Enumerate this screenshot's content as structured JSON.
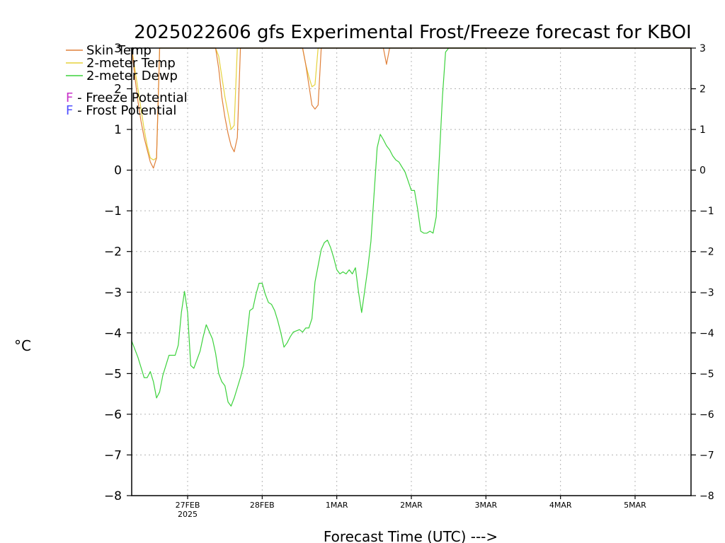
{
  "chart_data": {
    "type": "line",
    "title": "2025022606 gfs Experimental Frost/Freeze forecast for KBOI",
    "ylabel": "°C",
    "xlabel": "Forecast Time (UTC) --->",
    "ylim": [
      -8,
      3
    ],
    "xlim_hours": [
      6,
      186
    ],
    "yticks": [
      -8,
      -7,
      -6,
      -5,
      -4,
      -3,
      -2,
      -1,
      0,
      1,
      2,
      3
    ],
    "ytick_labels": [
      "−8",
      "−7",
      "−6",
      "−5",
      "−4",
      "−3",
      "−2",
      "−1",
      "0",
      "1",
      "2",
      "3"
    ],
    "xticks": [
      {
        "label": "27FEB",
        "sub": "2025",
        "hour": 24
      },
      {
        "label": "28FEB",
        "sub": "",
        "hour": 48
      },
      {
        "label": "1MAR",
        "sub": "",
        "hour": 72
      },
      {
        "label": "2MAR",
        "sub": "",
        "hour": 96
      },
      {
        "label": "3MAR",
        "sub": "",
        "hour": 120
      },
      {
        "label": "4MAR",
        "sub": "",
        "hour": 144
      },
      {
        "label": "5MAR",
        "sub": "",
        "hour": 168
      }
    ],
    "grid": true,
    "legend": [
      {
        "text": "Skin Temp",
        "color": "#e0803a"
      },
      {
        "text": "2-meter Temp",
        "color": "#e6d23c"
      },
      {
        "text": "2-meter Dewp",
        "color": "#3cd23c"
      }
    ],
    "notes": [
      {
        "letter": "F",
        "text": " - Freeze Potential",
        "color": "#c832c8"
      },
      {
        "letter": "F",
        "text": " - Frost Potential",
        "color": "#5050ff"
      }
    ],
    "series": [
      {
        "name": "2-meter Dewp",
        "color": "#3cd23c",
        "hours": [
          6,
          8,
          10,
          11,
          12,
          13,
          14,
          15,
          16,
          18,
          20,
          21,
          22,
          23,
          24,
          25,
          26,
          28,
          29,
          30,
          32,
          33,
          34,
          35,
          36,
          37,
          38,
          39,
          40,
          41,
          42,
          44,
          45,
          46,
          47,
          48,
          49,
          50,
          51,
          52,
          53,
          54,
          55,
          56,
          57,
          58,
          60,
          61,
          62,
          63,
          64,
          65,
          66,
          67,
          68,
          69,
          70,
          71,
          72,
          73,
          74,
          75,
          76,
          77,
          78,
          79,
          80,
          81,
          82,
          83,
          84,
          85,
          86,
          87,
          88,
          89,
          90,
          91,
          92,
          94,
          96,
          97,
          98,
          99,
          100,
          101,
          102,
          103,
          104,
          105,
          106,
          107,
          108,
          109,
          110,
          111,
          112,
          113,
          114,
          115,
          116,
          117,
          118,
          119,
          120
        ],
        "values": [
          -4.2,
          -4.6,
          -5.1,
          -5.1,
          -4.95,
          -5.2,
          -5.6,
          -5.45,
          -5.05,
          -4.55,
          -4.55,
          -4.3,
          -3.5,
          -2.98,
          -3.5,
          -4.8,
          -4.87,
          -4.45,
          -4.1,
          -3.8,
          -4.15,
          -4.5,
          -5.0,
          -5.2,
          -5.3,
          -5.7,
          -5.8,
          -5.6,
          -5.35,
          -5.1,
          -4.8,
          -3.45,
          -3.4,
          -3.05,
          -2.78,
          -2.78,
          -3.05,
          -3.25,
          -3.3,
          -3.45,
          -3.7,
          -4.0,
          -4.35,
          -4.25,
          -4.1,
          -3.98,
          -3.92,
          -3.98,
          -3.88,
          -3.88,
          -3.65,
          -2.75,
          -2.35,
          -1.95,
          -1.78,
          -1.72,
          -1.9,
          -2.15,
          -2.45,
          -2.55,
          -2.5,
          -2.55,
          -2.45,
          -2.55,
          -2.4,
          -3.0,
          -3.5,
          -2.95,
          -2.4,
          -1.75,
          -0.6,
          0.55,
          0.88,
          0.75,
          0.6,
          0.5,
          0.35,
          0.25,
          0.2,
          -0.05,
          -0.5,
          -0.5,
          -0.95,
          -1.5,
          -1.55,
          -1.55,
          -1.5,
          -1.55,
          -1.15,
          0.3,
          1.8,
          2.9,
          3.0,
          3.0,
          3.0,
          3.0,
          3.0,
          3.0,
          3.0,
          3.0,
          3.0,
          3.0,
          3.0,
          3.0,
          3.0
        ]
      },
      {
        "name": "2-meter Temp",
        "color": "#e6d23c",
        "hours": [
          6,
          7,
          8,
          9,
          10,
          11,
          12,
          13,
          14,
          15,
          16,
          17,
          18,
          19,
          20,
          21,
          22,
          23,
          24,
          25,
          26,
          27,
          28,
          29,
          30,
          31,
          32,
          33,
          34,
          35,
          36,
          37,
          38,
          39,
          40,
          41,
          42,
          43,
          44,
          45,
          46,
          47,
          48,
          49,
          50,
          51,
          52,
          53,
          54,
          55,
          56,
          57,
          58,
          59,
          60,
          61,
          62,
          63,
          64,
          65,
          66,
          67,
          68,
          69,
          70,
          71,
          72,
          73,
          74,
          75,
          76,
          77,
          78,
          79,
          80,
          81,
          82,
          83,
          84,
          85,
          86,
          87,
          88,
          89,
          90,
          91,
          92,
          93,
          94,
          95,
          96,
          97,
          98,
          99,
          100,
          101,
          102,
          103,
          104,
          105,
          106,
          107,
          108,
          109,
          110,
          111,
          112,
          113,
          114,
          115,
          116,
          117,
          118,
          119,
          120,
          121,
          122,
          123,
          124,
          125,
          126,
          128,
          130,
          132,
          134,
          136,
          138,
          140,
          142,
          144,
          150,
          156,
          162,
          168,
          174,
          180,
          186
        ],
        "values": [
          3.0,
          2.5,
          2.0,
          1.5,
          1.0,
          0.6,
          0.3,
          0.25,
          0.3,
          3.0,
          3.0,
          3.0,
          3.0,
          3.0,
          3.0,
          3.0,
          3.0,
          3.0,
          3.0,
          3.0,
          3.0,
          3.0,
          3.0,
          3.0,
          3.0,
          3.0,
          3.0,
          3.0,
          2.8,
          2.3,
          1.8,
          1.4,
          1.0,
          1.1,
          3.0,
          3.0,
          3.0,
          3.0,
          3.0,
          3.0,
          3.0,
          3.0,
          3.0,
          3.0,
          3.0,
          3.0,
          3.0,
          3.0,
          3.0,
          3.0,
          3.0,
          3.0,
          3.0,
          3.0,
          3.0,
          3.0,
          2.6,
          2.3,
          2.05,
          2.1,
          3.0,
          3.0,
          3.0,
          3.0,
          3.0,
          3.0,
          3.0,
          3.0,
          3.0,
          3.0,
          3.0,
          3.0,
          3.0,
          3.0,
          3.0,
          3.0,
          3.0,
          3.0,
          3.0,
          3.0,
          3.0,
          3.0,
          3.0,
          3.0,
          3.0,
          3.0,
          3.0,
          3.0,
          3.0,
          3.0,
          3.0,
          3.0,
          3.0,
          3.0,
          3.0,
          3.0,
          3.0,
          3.0,
          3.0,
          3.0,
          3.0,
          3.0,
          3.0,
          3.0,
          3.0,
          3.0,
          3.0,
          3.0,
          3.0,
          3.0,
          3.0,
          3.0,
          3.0,
          3.0,
          3.0,
          3.0,
          3.0,
          3.0,
          3.0,
          3.0,
          3.0,
          3.0,
          3.0,
          3.0,
          3.0,
          3.0,
          3.0,
          3.0,
          3.0,
          3.0,
          3.0,
          3.0,
          3.0,
          3.0,
          3.0,
          3.0,
          3.0
        ]
      },
      {
        "name": "Skin Temp",
        "color": "#e0803a",
        "hours": [
          6,
          7,
          8,
          9,
          10,
          11,
          12,
          13,
          14,
          15,
          16,
          17,
          18,
          19,
          20,
          21,
          22,
          23,
          24,
          25,
          26,
          27,
          28,
          29,
          30,
          31,
          32,
          33,
          34,
          35,
          36,
          37,
          38,
          39,
          40,
          41,
          42,
          43,
          44,
          45,
          46,
          47,
          48,
          49,
          50,
          51,
          52,
          53,
          54,
          55,
          56,
          57,
          58,
          59,
          60,
          61,
          62,
          63,
          64,
          65,
          66,
          67,
          68,
          69,
          70,
          71,
          72,
          73,
          74,
          75,
          76,
          77,
          78,
          79,
          80,
          81,
          82,
          83,
          84,
          85,
          86,
          87,
          88,
          89,
          90,
          91,
          92,
          93,
          94,
          95,
          96,
          97,
          98,
          99,
          100,
          101,
          102,
          103,
          104,
          105,
          106,
          107,
          108,
          109,
          110,
          111,
          112,
          113,
          114,
          115,
          116,
          117,
          118,
          119,
          120,
          121,
          122,
          123,
          124,
          125,
          126,
          128,
          130,
          132,
          134,
          136,
          138,
          140,
          142,
          144,
          150,
          156,
          162,
          168,
          174,
          180,
          186
        ],
        "values": [
          3.0,
          2.3,
          1.7,
          1.2,
          0.8,
          0.5,
          0.2,
          0.05,
          0.3,
          3.0,
          3.0,
          3.0,
          3.0,
          3.0,
          3.0,
          3.0,
          3.0,
          3.0,
          3.0,
          3.0,
          3.0,
          3.0,
          3.0,
          3.0,
          3.0,
          3.0,
          3.0,
          3.0,
          2.5,
          1.8,
          1.3,
          0.9,
          0.6,
          0.45,
          0.8,
          3.0,
          3.0,
          3.0,
          3.0,
          3.0,
          3.0,
          3.0,
          3.0,
          3.0,
          3.0,
          3.0,
          3.0,
          3.0,
          3.0,
          3.0,
          3.0,
          3.0,
          3.0,
          3.0,
          3.0,
          3.0,
          2.6,
          2.1,
          1.6,
          1.5,
          1.6,
          3.0,
          3.0,
          3.0,
          3.0,
          3.0,
          3.0,
          3.0,
          3.0,
          3.0,
          3.0,
          3.0,
          3.0,
          3.0,
          3.0,
          3.0,
          3.0,
          3.0,
          3.0,
          3.0,
          3.0,
          3.0,
          2.6,
          3.0,
          3.0,
          3.0,
          3.0,
          3.0,
          3.0,
          3.0,
          3.0,
          3.0,
          3.0,
          3.0,
          3.0,
          3.0,
          3.0,
          3.0,
          3.0,
          3.0,
          3.0,
          3.0,
          3.0,
          3.0,
          3.0,
          3.0,
          3.0,
          3.0,
          3.0,
          3.0,
          3.0,
          3.0,
          3.0,
          3.0,
          3.0,
          3.0,
          3.0,
          3.0,
          3.0,
          3.0,
          3.0,
          3.0,
          3.0,
          3.0,
          3.0,
          3.0,
          3.0,
          3.0,
          3.0,
          3.0,
          3.0,
          3.0,
          3.0,
          3.0,
          3.0,
          3.0,
          3.0
        ]
      }
    ]
  }
}
